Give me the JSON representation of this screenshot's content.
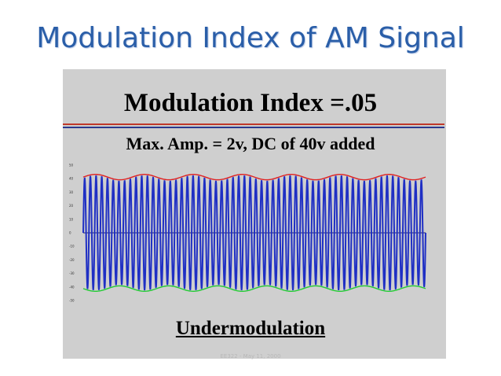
{
  "slide": {
    "title": "Modulation Index of AM Signal",
    "footer": "EE322 - May 11, 2000"
  },
  "panel": {
    "title": "Modulation Index =.05",
    "subtitle": "Max. Amp. = 2v,  DC of 40v added",
    "caption": "Undermodulation"
  },
  "colors": {
    "title": "#2a5ea8",
    "carrier": "#1f2fc4",
    "upper_envelope": "#e02020",
    "lower_envelope": "#22cc33",
    "panel_bg": "#cfcfcf"
  },
  "chart_data": {
    "type": "line",
    "y_ticks": [
      "50",
      "40",
      "30",
      "20",
      "10",
      "0",
      "-10",
      "-20",
      "-30",
      "-40",
      "-50"
    ],
    "ylim": [
      -50,
      50
    ],
    "carrier_amplitude": 40,
    "modulation_index": 0.05,
    "carrier_cycles": 60,
    "envelope_cycles": 7
  }
}
